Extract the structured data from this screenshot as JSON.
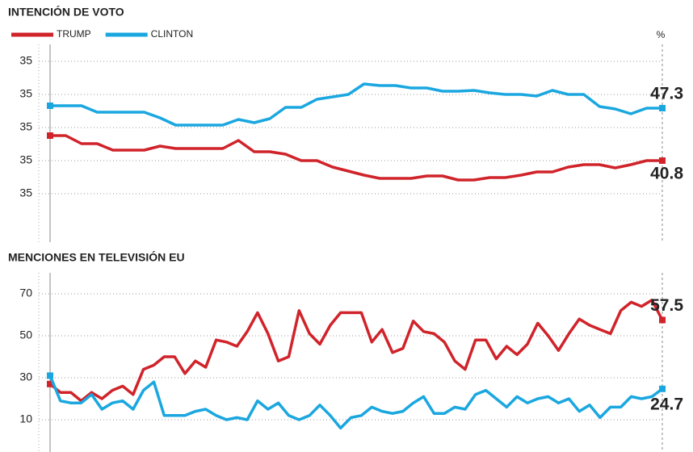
{
  "chart_data": [
    {
      "type": "line",
      "title": "INTENCIÓN DE VOTO",
      "ylabel": "%",
      "ylim": [
        32.7,
        55.2
      ],
      "yticks": [
        {
          "value": 36.7,
          "label": "35"
        },
        {
          "value": 40.8,
          "label": "35"
        },
        {
          "value": 44.9,
          "label": "35"
        },
        {
          "value": 49,
          "label": "35"
        },
        {
          "value": 53.1,
          "label": "35"
        }
      ],
      "grid": true,
      "legend": "top-left",
      "series": [
        {
          "name": "TRUMP",
          "color": "#d0232a",
          "values": [
            43.9,
            43.9,
            42.9,
            42.9,
            42.1,
            42.1,
            42.1,
            42.6,
            42.3,
            42.3,
            42.3,
            42.3,
            43.3,
            41.9,
            41.9,
            41.6,
            40.8,
            40.8,
            40.0,
            39.5,
            39.0,
            38.6,
            38.6,
            38.6,
            38.9,
            38.9,
            38.4,
            38.4,
            38.7,
            38.7,
            39.0,
            39.4,
            39.4,
            40.0,
            40.3,
            40.3,
            39.9,
            40.3,
            40.8,
            40.8
          ]
        },
        {
          "name": "CLINTON",
          "color": "#1aa7e0",
          "values": [
            47.6,
            47.6,
            47.6,
            46.8,
            46.8,
            46.8,
            46.8,
            46.1,
            45.2,
            45.2,
            45.2,
            45.2,
            45.9,
            45.5,
            46.0,
            47.4,
            47.4,
            48.4,
            48.7,
            49.0,
            50.3,
            50.1,
            50.1,
            49.8,
            49.8,
            49.4,
            49.4,
            49.5,
            49.2,
            49.0,
            49.0,
            48.8,
            49.5,
            49.0,
            49.0,
            47.5,
            47.2,
            46.6,
            47.3,
            47.3
          ]
        }
      ]
    },
    {
      "type": "line",
      "title": "MENCIONES EN TELEVISIÓN EU",
      "ylim": [
        -5,
        80
      ],
      "yticks": [
        10,
        30,
        50,
        70
      ],
      "grid": true,
      "series": [
        {
          "color": "#d0232a",
          "values": [
            27,
            23,
            23,
            19,
            23,
            20,
            24,
            26,
            22,
            34,
            36,
            40,
            40,
            32,
            38,
            35,
            48,
            47,
            45,
            52,
            61,
            51,
            38,
            40,
            62,
            51,
            46,
            55,
            61,
            61,
            61,
            47,
            53,
            42,
            44,
            57,
            52,
            51,
            47,
            38,
            34,
            48,
            48,
            39,
            45,
            41,
            46,
            56,
            50,
            43,
            51,
            58,
            55,
            53,
            51,
            62,
            66,
            64,
            67,
            57.5
          ]
        },
        {
          "color": "#1aa7e0",
          "values": [
            31,
            19,
            18,
            18,
            22,
            15,
            18,
            19,
            15,
            24,
            28,
            12,
            12,
            12,
            14,
            15,
            12,
            10,
            11,
            10,
            19,
            15,
            18,
            12,
            10,
            12,
            17,
            12,
            6,
            11,
            12,
            16,
            14,
            13,
            14,
            18,
            21,
            13,
            13,
            16,
            15,
            22,
            24,
            20,
            16,
            21,
            18,
            20,
            21,
            18,
            20,
            14,
            17,
            11,
            16,
            16,
            21,
            20,
            21,
            24.7
          ]
        }
      ]
    }
  ]
}
